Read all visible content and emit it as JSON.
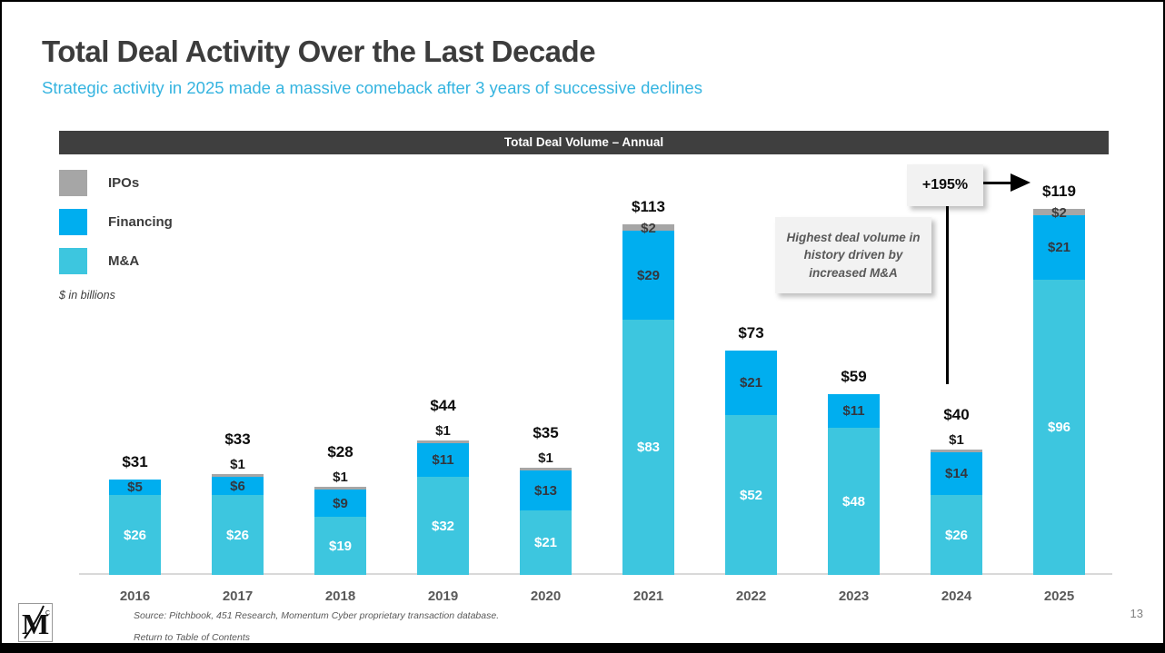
{
  "slide": {
    "title": "Total Deal Activity Over the Last Decade",
    "subtitle": "Strategic activity in 2025 made a massive comeback after 3 years of successive declines",
    "page_number": "13",
    "source_note": "Source: Pitchbook, 451 Research, Momentum Cyber proprietary transaction database.",
    "return_link": "Return to Table of Contents",
    "logo_letter": "M"
  },
  "chart": {
    "header": "Total Deal Volume – Annual",
    "units_note": "$ in billions",
    "legend": [
      {
        "label": "IPOs",
        "color": "#a6a6a6"
      },
      {
        "label": "Financing",
        "color": "#00aeef"
      },
      {
        "label": "M&A",
        "color": "#3dc6df"
      }
    ],
    "annotations": {
      "pct_callout": "+195%",
      "note_box": "Highest deal volume in history driven by increased M&A"
    }
  },
  "chart_data": {
    "type": "bar",
    "stacked": true,
    "title": "Total Deal Volume – Annual",
    "ylabel": "$ in billions",
    "legend_position": "top-left",
    "grid": false,
    "categories": [
      "2016",
      "2017",
      "2018",
      "2019",
      "2020",
      "2021",
      "2022",
      "2023",
      "2024",
      "2025"
    ],
    "series": [
      {
        "name": "M&A",
        "color": "#3dc6df",
        "values": [
          26,
          26,
          19,
          32,
          21,
          83,
          52,
          48,
          26,
          96
        ]
      },
      {
        "name": "Financing",
        "color": "#00aeef",
        "values": [
          5,
          6,
          9,
          11,
          13,
          29,
          21,
          11,
          14,
          21
        ]
      },
      {
        "name": "IPOs",
        "color": "#a6a6a6",
        "values": [
          0,
          1,
          1,
          1,
          1,
          2,
          0,
          0,
          1,
          2
        ]
      }
    ],
    "totals": [
      "$31",
      "$33",
      "$28",
      "$44",
      "$35",
      "$113",
      "$73",
      "$59",
      "$40",
      "$119"
    ],
    "annotation_2025_growth": "+195%",
    "annotation_note": "Highest deal volume in history driven by increased M&A"
  }
}
